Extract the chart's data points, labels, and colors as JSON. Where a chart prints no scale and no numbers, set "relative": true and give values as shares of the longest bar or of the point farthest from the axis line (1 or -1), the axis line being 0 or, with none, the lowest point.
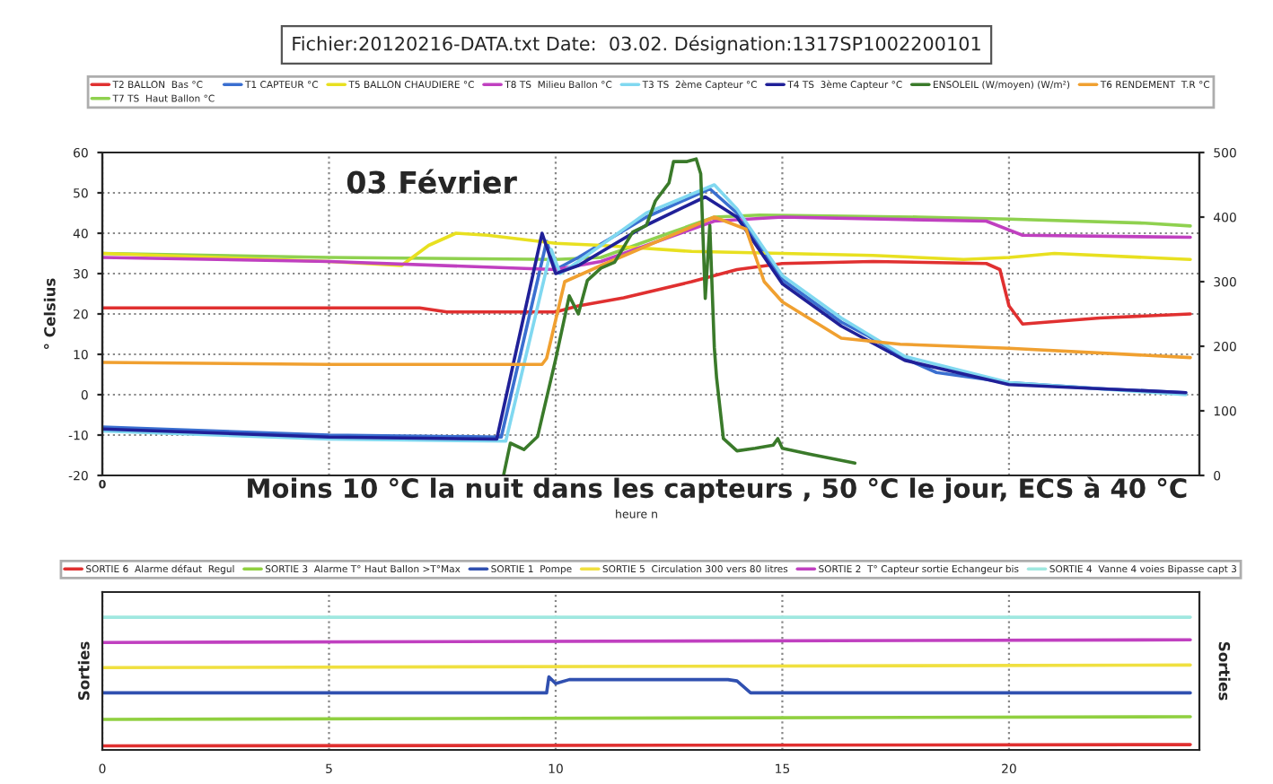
{
  "chart_data": [
    {
      "type": "line",
      "title": "Fichier:20120216-DATA.txt Date:  03.02. Désignation:1317SP1002200101",
      "xlabel": "heure n",
      "ylabel": "° Celsius",
      "annotations": [
        "03 Février",
        "Moins 10 °C la nuit dans les capteurs , 50 °C le jour, ECS à 40 °C",
        "0"
      ],
      "tick_labels": "y",
      "xlim": [
        0,
        24.2
      ],
      "xticks": [
        0,
        {
          "value": 5,
          "label": null
        },
        {
          "value": 10,
          "label": null
        },
        {
          "value": 15,
          "label": null
        },
        {
          "value": 20,
          "label": null
        }
      ],
      "ylim": [
        -20,
        60
      ],
      "yticks": [
        -20,
        -10,
        0,
        10,
        20,
        30,
        40,
        50,
        60
      ],
      "y2lim": [
        0,
        500
      ],
      "y2ticks": [
        0,
        100,
        200,
        300,
        400,
        500
      ],
      "grid": true,
      "legend": "top",
      "line_style": "solid",
      "series": [
        {
          "name": "T2 BALLON  Bas °C",
          "color": "#e03030",
          "x": [
            0,
            5,
            7,
            7.6,
            10,
            10.5,
            11.5,
            13,
            14,
            15,
            17,
            19.5,
            19.8,
            20,
            20.3,
            22,
            24
          ],
          "values": [
            21.5,
            21.5,
            21.5,
            20.5,
            20.5,
            22,
            24,
            28,
            31,
            32.5,
            33,
            32.5,
            31,
            22,
            17.5,
            19,
            20
          ]
        },
        {
          "name": "T7 TS  Haut Ballon °C",
          "color": "#8fd14f",
          "x": [
            0,
            5,
            10,
            11,
            12.5,
            13.5,
            14.5,
            18,
            20,
            23,
            24
          ],
          "values": [
            35,
            34,
            33.5,
            34,
            40,
            44,
            44.5,
            44,
            43.5,
            42.5,
            41.8
          ]
        },
        {
          "name": "T1 CAPTEUR °C",
          "color": "#3a6fd0",
          "x": [
            0,
            5,
            8.8,
            9.8,
            10,
            10.5,
            12,
            13.4,
            14,
            15,
            16.3,
            16.9,
            17.7,
            18.4,
            20,
            22,
            23.9
          ],
          "values": [
            -8,
            -10,
            -10.5,
            38,
            31,
            34,
            44,
            51,
            45,
            28.5,
            18,
            14.5,
            9,
            5.5,
            3,
            1.5,
            0.5
          ]
        },
        {
          "name": "T5 BALLON CHAUDIERE °C",
          "color": "#e8e020",
          "x": [
            0,
            5,
            6.6,
            7.2,
            7.8,
            8.5,
            10,
            11,
            13,
            17,
            19,
            20,
            21,
            24
          ],
          "values": [
            35,
            33,
            32,
            37,
            40,
            39.5,
            37.5,
            37,
            35.5,
            34.5,
            33.5,
            34,
            35,
            33.5
          ]
        },
        {
          "name": "T8 TS  Milieu Ballon °C",
          "color": "#c040c0",
          "x": [
            0,
            5,
            10,
            11,
            13.5,
            15,
            19.5,
            20.3,
            24
          ],
          "values": [
            34,
            33,
            31,
            33,
            43,
            44,
            43,
            39.5,
            39
          ]
        },
        {
          "name": "T3 TS  2ème Capteur °C",
          "color": "#80d8f0",
          "x": [
            0,
            5,
            8.9,
            9.9,
            10.1,
            10.5,
            12,
            13.5,
            14,
            15,
            16.3,
            17.7,
            20,
            23.9
          ],
          "values": [
            -9,
            -11,
            -11.5,
            36,
            30,
            33,
            45,
            52,
            46,
            29.5,
            19,
            9.5,
            3,
            0
          ]
        },
        {
          "name": "T4 TS  3ème Capteur °C",
          "color": "#202098",
          "x": [
            0,
            5,
            8.7,
            9.7,
            10,
            10.5,
            12,
            13.3,
            14,
            15,
            16.3,
            17.7,
            20,
            23.9
          ],
          "values": [
            -8.5,
            -10.5,
            -11,
            40,
            30,
            32,
            42,
            49,
            44,
            27.5,
            17,
            8.5,
            2.5,
            0.5
          ]
        },
        {
          "name": "ENSOLEIL (W/moyen) (W/m²)",
          "color": "#3a7a2a",
          "axis": "y2",
          "x": [
            8.85,
            9.0,
            9.3,
            9.6,
            10.0,
            10.3,
            10.5,
            10.7,
            11.0,
            11.3,
            11.7,
            12.0,
            12.2,
            12.5,
            12.6,
            12.9,
            13.1,
            13.2,
            13.3,
            13.4,
            13.5,
            13.55,
            13.7,
            14.0,
            14.4,
            14.8,
            14.9,
            15.0,
            15.6,
            16.6
          ],
          "values": [
            0,
            50,
            40,
            60,
            180,
            278,
            250,
            302,
            321,
            330,
            377,
            387,
            425,
            453,
            486,
            486,
            490,
            467,
            274,
            387,
            198,
            151,
            57,
            38,
            42,
            47,
            57,
            42,
            33,
            19
          ]
        },
        {
          "name": "T6 RENDEMENT  T.R °C",
          "color": "#f0a030",
          "x": [
            0,
            5,
            9.7,
            9.8,
            10.2,
            11,
            13.5,
            14.2,
            14.6,
            15,
            16.3,
            17.6,
            20,
            24
          ],
          "values": [
            8,
            7.5,
            7.5,
            9,
            28,
            32,
            44,
            41,
            28,
            23,
            14,
            12.5,
            11.5,
            9.2
          ]
        }
      ]
    },
    {
      "type": "line",
      "relative": true,
      "ylabel": "Sorties",
      "y2label": "Sorties",
      "xlim": [
        0,
        24.2
      ],
      "xticks": [
        0,
        5,
        10,
        15,
        20
      ],
      "grid": "x",
      "legend": "top",
      "line_style": "solid",
      "series": [
        {
          "name": "SORTIE 6  Alarme défaut  Regul",
          "color": "#e03030",
          "x": [
            0,
            24
          ],
          "values": [
            0.03,
            0.04
          ]
        },
        {
          "name": "SORTIE 3  Alarme T° Haut Ballon >T°Max",
          "color": "#90d040",
          "x": [
            0,
            24
          ],
          "values": [
            0.23,
            0.25
          ]
        },
        {
          "name": "SORTIE 1  Pompe",
          "color": "#3050b0",
          "x": [
            0,
            9.8,
            9.85,
            10.0,
            10.3,
            13.8,
            14.0,
            14.3,
            24
          ],
          "values": [
            0.43,
            0.43,
            0.55,
            0.5,
            0.53,
            0.53,
            0.52,
            0.43,
            0.43
          ]
        },
        {
          "name": "SORTIE 5  Circulation 300 vers 80 litres",
          "color": "#f0e040",
          "x": [
            0,
            24
          ],
          "values": [
            0.62,
            0.64
          ]
        },
        {
          "name": "SORTIE 2  T° Capteur sortie Echangeur bis",
          "color": "#c040c0",
          "x": [
            0,
            24
          ],
          "values": [
            0.81,
            0.83
          ]
        },
        {
          "name": "SORTIE 4  Vanne 4 voies Bipasse capt 3",
          "color": "#a0e8e0",
          "x": [
            0,
            24
          ],
          "values": [
            1,
            1
          ]
        }
      ]
    }
  ]
}
